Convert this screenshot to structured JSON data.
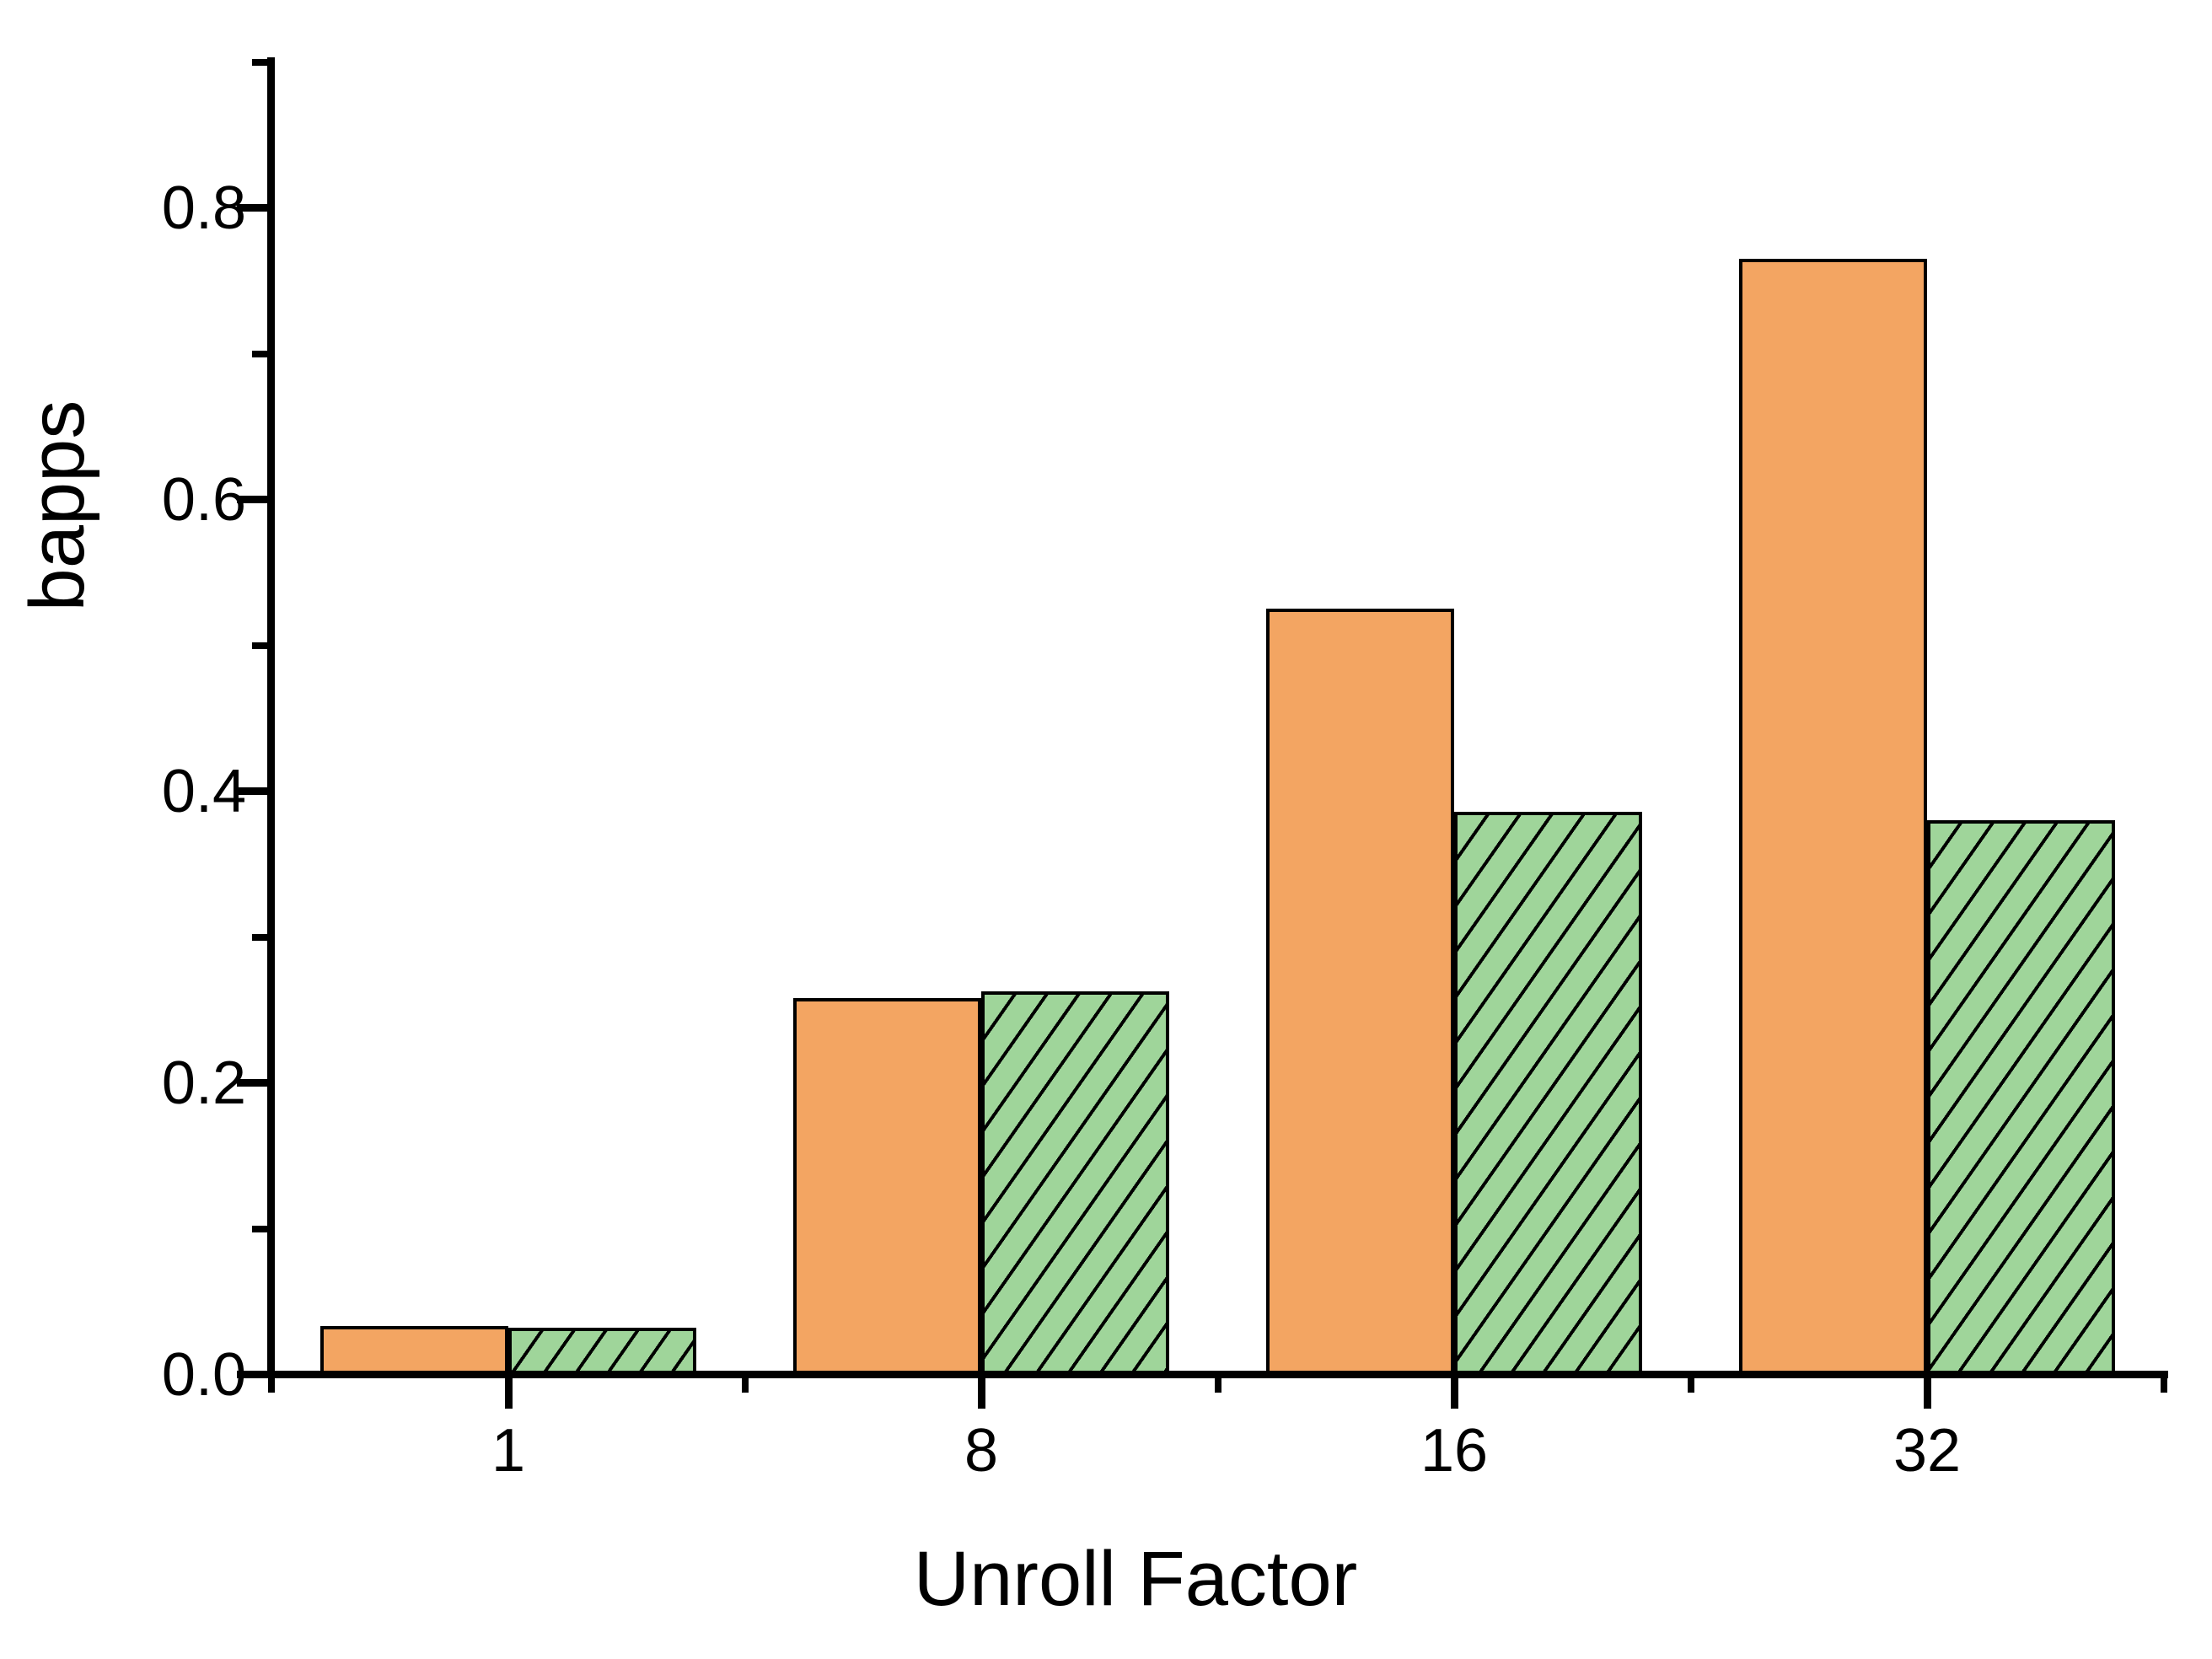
{
  "chart_data": {
    "type": "bar",
    "title": "",
    "xlabel": "Unroll Factor",
    "ylabel": "bapps",
    "categories": [
      "1",
      "8",
      "16",
      "32"
    ],
    "series": [
      {
        "name": "solid-orange",
        "fill": "#F3A562",
        "hatch": "none",
        "values": [
          0.033,
          0.258,
          0.525,
          0.765
        ]
      },
      {
        "name": "hatched-green",
        "fill": "#9FD59A",
        "hatch": "diagonal-forward",
        "values": [
          0.032,
          0.263,
          0.386,
          0.38
        ]
      }
    ],
    "ylim": [
      0.0,
      0.9
    ],
    "y_major_ticks": [
      "0.0",
      "0.2",
      "0.4",
      "0.6",
      "0.8"
    ],
    "y_major_tick_values": [
      0.0,
      0.2,
      0.4,
      0.6,
      0.8
    ],
    "y_minor_tick_values": [
      0.1,
      0.3,
      0.5,
      0.7,
      0.9
    ],
    "grid": false,
    "legend": "none",
    "bar_outline_color": "#000000",
    "axis_color": "#000000",
    "background": "#FFFFFF"
  }
}
